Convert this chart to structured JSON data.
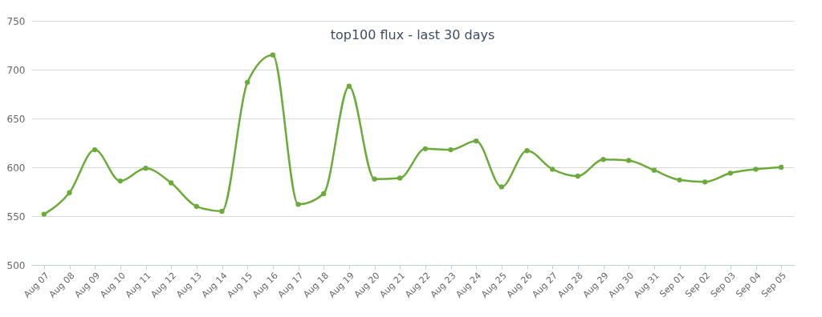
{
  "chart_data": {
    "type": "line",
    "title": "top100 flux - last 30 days",
    "categories": [
      "Aug 07",
      "Aug 08",
      "Aug 09",
      "Aug 10",
      "Aug 11",
      "Aug 12",
      "Aug 13",
      "Aug 14",
      "Aug 15",
      "Aug 16",
      "Aug 17",
      "Aug 18",
      "Aug 19",
      "Aug 20",
      "Aug 21",
      "Aug 22",
      "Aug 23",
      "Aug 24",
      "Aug 25",
      "Aug 26",
      "Aug 27",
      "Aug 28",
      "Aug 29",
      "Aug 30",
      "Aug 31",
      "Sep 01",
      "Sep 02",
      "Sep 03",
      "Sep 04",
      "Sep 05"
    ],
    "series": [
      {
        "color": "#6aab3a",
        "values": [
          552,
          574,
          618,
          586,
          599,
          584,
          560,
          555,
          687,
          715,
          562,
          573,
          683,
          588,
          589,
          619,
          618,
          627,
          580,
          617,
          598,
          591,
          608,
          607,
          597,
          587,
          585,
          594,
          598,
          600
        ]
      }
    ],
    "ylim": [
      500,
      750
    ],
    "yticks": [
      500,
      550,
      600,
      650,
      700,
      750
    ],
    "grid": "y",
    "marker": "circle"
  }
}
